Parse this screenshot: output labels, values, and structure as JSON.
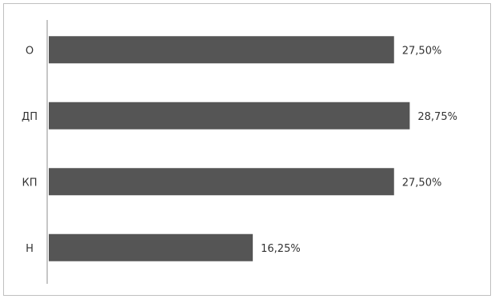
{
  "chart_data": {
    "type": "bar",
    "orientation": "horizontal",
    "categories": [
      "О",
      "ДП",
      "КП",
      "Н"
    ],
    "values": [
      27.5,
      28.75,
      27.5,
      16.25
    ],
    "data_labels": [
      "27,50%",
      "28,75%",
      "27,50%",
      "16,25%"
    ],
    "title": "",
    "xlabel": "",
    "ylabel": "",
    "xlim": [
      0,
      30
    ],
    "grid": false,
    "legend": "none",
    "bar_color": "#555555"
  }
}
